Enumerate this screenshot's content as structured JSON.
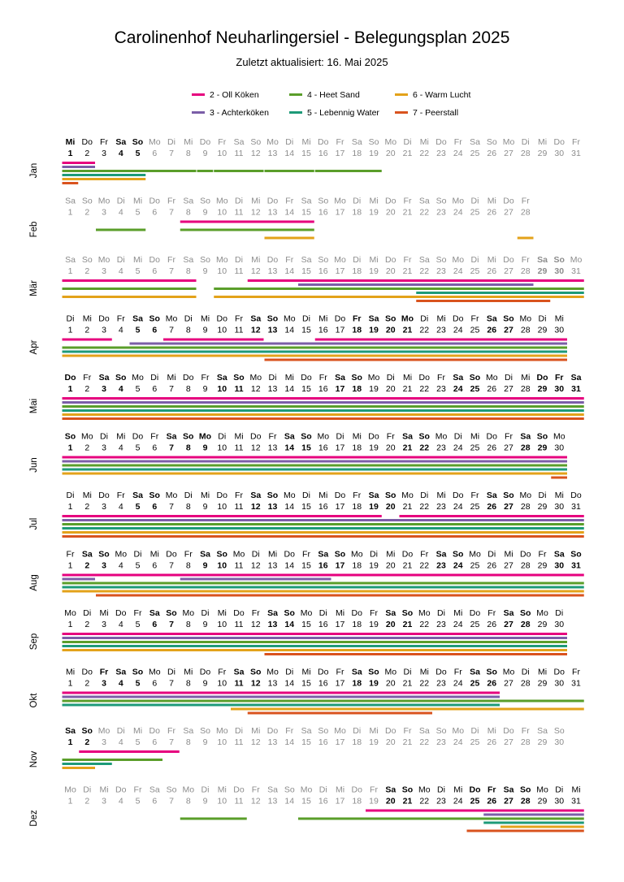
{
  "title": "Carolinenhof Neuharlingersiel - Belegungsplan 2025",
  "subtitle": "Zuletzt aktualisiert: 16. Mai 2025",
  "legend": [
    {
      "label": "2 - Oll Köken",
      "color": "#e6007e"
    },
    {
      "label": "4 - Heet Sand",
      "color": "#5a9e2a"
    },
    {
      "label": "6 - Warm Lucht",
      "color": "#e3a21a"
    },
    {
      "label": "3 - Achterköken",
      "color": "#7b5ea7"
    },
    {
      "label": "5 - Lebennig Water",
      "color": "#1d9a78"
    },
    {
      "label": "7 - Peerstall",
      "color": "#d9531e"
    }
  ],
  "chart_data": {
    "type": "occupancy-calendar",
    "year": 2025,
    "series": [
      {
        "name": "2 - Oll Köken",
        "color": "#e6007e"
      },
      {
        "name": "3 - Achterköken",
        "color": "#7b5ea7"
      },
      {
        "name": "4 - Heet Sand",
        "color": "#5a9e2a"
      },
      {
        "name": "5 - Lebennig Water",
        "color": "#1d9a78"
      },
      {
        "name": "6 - Warm Lucht",
        "color": "#e3a21a"
      },
      {
        "name": "7 - Peerstall",
        "color": "#d9531e"
      }
    ],
    "months": [
      {
        "label": "Jan",
        "days": 31,
        "first_weekday": "Mi",
        "bold_days": [
          1,
          4,
          5
        ],
        "grey_from": 6,
        "bookings": [
          [
            [
              1,
              2
            ]
          ],
          [
            [
              1,
              2
            ]
          ],
          [
            [
              1,
              8
            ],
            [
              9,
              9
            ],
            [
              10,
              12
            ],
            [
              13,
              15
            ],
            [
              16,
              19
            ]
          ],
          [
            [
              1,
              5
            ]
          ],
          [
            [
              1,
              5
            ]
          ],
          [
            [
              1,
              1
            ]
          ]
        ]
      },
      {
        "label": "Feb",
        "days": 28,
        "first_weekday": "Sa",
        "bold_days": [],
        "grey_from": 1,
        "bookings": [
          [
            [
              8,
              15
            ]
          ],
          [],
          [
            [
              3,
              5
            ],
            [
              8,
              15
            ]
          ],
          [],
          [
            [
              13,
              15
            ],
            [
              28,
              28
            ]
          ],
          []
        ]
      },
      {
        "label": "Mär",
        "days": 31,
        "first_weekday": "Sa",
        "bold_days": [
          29,
          30
        ],
        "grey_from": 1,
        "bookings": [
          [
            [
              1,
              8
            ],
            [
              12,
              31
            ]
          ],
          [
            [
              15,
              28
            ]
          ],
          [
            [
              1,
              8
            ],
            [
              10,
              31
            ]
          ],
          [
            [
              22,
              31
            ]
          ],
          [
            [
              1,
              8
            ],
            [
              10,
              31
            ]
          ],
          [
            [
              22,
              29
            ]
          ]
        ]
      },
      {
        "label": "Apr",
        "days": 30,
        "first_weekday": "Di",
        "bold_days": [
          5,
          6,
          12,
          13,
          18,
          19,
          20,
          21,
          26,
          27
        ],
        "grey_from": 31,
        "bookings": [
          [
            [
              1,
              3
            ],
            [
              7,
              12
            ],
            [
              16,
              30
            ]
          ],
          [
            [
              5,
              30
            ]
          ],
          [
            [
              1,
              30
            ]
          ],
          [
            [
              1,
              30
            ]
          ],
          [
            [
              1,
              30
            ]
          ],
          [
            [
              13,
              30
            ]
          ]
        ]
      },
      {
        "label": "Mai",
        "days": 31,
        "first_weekday": "Do",
        "bold_days": [
          1,
          3,
          4,
          10,
          11,
          17,
          18,
          24,
          25,
          29,
          30,
          31
        ],
        "grey_from": 32,
        "bookings": [
          [
            [
              1,
              31
            ]
          ],
          [
            [
              1,
              31
            ]
          ],
          [
            [
              1,
              31
            ]
          ],
          [
            [
              1,
              31
            ]
          ],
          [
            [
              1,
              31
            ]
          ],
          [
            [
              1,
              31
            ]
          ]
        ]
      },
      {
        "label": "Jun",
        "days": 30,
        "first_weekday": "So",
        "bold_days": [
          1,
          7,
          8,
          9,
          14,
          15,
          21,
          22,
          28,
          29
        ],
        "grey_from": 31,
        "bookings": [
          [
            [
              1,
              30
            ]
          ],
          [
            [
              1,
              30
            ]
          ],
          [
            [
              1,
              30
            ]
          ],
          [
            [
              1,
              30
            ]
          ],
          [
            [
              1,
              30
            ]
          ],
          [
            [
              30,
              30
            ]
          ]
        ]
      },
      {
        "label": "Jul",
        "days": 31,
        "first_weekday": "Di",
        "bold_days": [
          5,
          6,
          12,
          13,
          19,
          20,
          26,
          27
        ],
        "grey_from": 32,
        "bookings": [
          [
            [
              1,
              19
            ],
            [
              21,
              31
            ]
          ],
          [
            [
              1,
              31
            ]
          ],
          [
            [
              1,
              31
            ]
          ],
          [
            [
              1,
              31
            ]
          ],
          [
            [
              1,
              31
            ]
          ],
          [
            [
              1,
              31
            ]
          ]
        ]
      },
      {
        "label": "Aug",
        "days": 31,
        "first_weekday": "Fr",
        "bold_days": [
          2,
          3,
          9,
          10,
          16,
          17,
          23,
          24,
          30,
          31
        ],
        "grey_from": 32,
        "bookings": [
          [
            [
              1,
              31
            ]
          ],
          [
            [
              1,
              2
            ],
            [
              8,
              16
            ]
          ],
          [
            [
              1,
              31
            ]
          ],
          [
            [
              1,
              31
            ]
          ],
          [
            [
              1,
              31
            ]
          ],
          [
            [
              3,
              31
            ]
          ]
        ]
      },
      {
        "label": "Sep",
        "days": 30,
        "first_weekday": "Mo",
        "bold_days": [
          6,
          7,
          13,
          14,
          20,
          21,
          27,
          28
        ],
        "grey_from": 31,
        "bookings": [
          [
            [
              1,
              30
            ]
          ],
          [
            [
              1,
              30
            ]
          ],
          [
            [
              1,
              30
            ]
          ],
          [
            [
              1,
              30
            ]
          ],
          [
            [
              1,
              30
            ]
          ],
          [
            [
              13,
              30
            ]
          ]
        ]
      },
      {
        "label": "Okt",
        "days": 31,
        "first_weekday": "Mi",
        "bold_days": [
          3,
          4,
          5,
          11,
          12,
          18,
          19,
          25,
          26
        ],
        "grey_from": 32,
        "bookings": [
          [
            [
              1,
              26
            ]
          ],
          [
            [
              1,
              26
            ]
          ],
          [
            [
              1,
              31
            ]
          ],
          [
            [
              1,
              26
            ]
          ],
          [
            [
              11,
              31
            ]
          ],
          [
            [
              12,
              22
            ]
          ]
        ]
      },
      {
        "label": "Nov",
        "days": 30,
        "first_weekday": "Sa",
        "bold_days": [
          1,
          2
        ],
        "grey_from": 3,
        "bookings": [
          [
            [
              2,
              7
            ]
          ],
          [],
          [
            [
              1,
              6
            ]
          ],
          [
            [
              1,
              3
            ]
          ],
          [
            [
              1,
              2
            ]
          ],
          []
        ]
      },
      {
        "label": "Dez",
        "days": 31,
        "first_weekday": "Mo",
        "bold_days": [
          20,
          21,
          25,
          26,
          27,
          28
        ],
        "grey_from": 1,
        "black_from": 20,
        "bookings": [
          [
            [
              19,
              31
            ]
          ],
          [
            [
              26,
              31
            ]
          ],
          [
            [
              8,
              11
            ],
            [
              15,
              31
            ]
          ],
          [
            [
              26,
              31
            ]
          ],
          [
            [
              27,
              31
            ]
          ],
          [
            [
              25,
              31
            ]
          ]
        ]
      }
    ]
  }
}
